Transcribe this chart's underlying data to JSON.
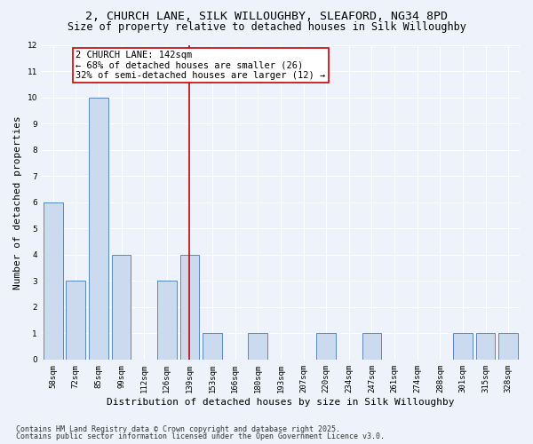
{
  "title_line1": "2, CHURCH LANE, SILK WILLOUGHBY, SLEAFORD, NG34 8PD",
  "title_line2": "Size of property relative to detached houses in Silk Willoughby",
  "xlabel": "Distribution of detached houses by size in Silk Willoughby",
  "ylabel": "Number of detached properties",
  "categories": [
    "58sqm",
    "72sqm",
    "85sqm",
    "99sqm",
    "112sqm",
    "126sqm",
    "139sqm",
    "153sqm",
    "166sqm",
    "180sqm",
    "193sqm",
    "207sqm",
    "220sqm",
    "234sqm",
    "247sqm",
    "261sqm",
    "274sqm",
    "288sqm",
    "301sqm",
    "315sqm",
    "328sqm"
  ],
  "values": [
    6,
    3,
    10,
    4,
    0,
    3,
    4,
    1,
    0,
    1,
    0,
    0,
    1,
    0,
    1,
    0,
    0,
    0,
    1,
    1,
    1
  ],
  "bar_color": "#ccdaf0",
  "bar_edge_color": "#5a87c5",
  "highlight_index": 6,
  "red_line_index": 6,
  "annotation_text": "2 CHURCH LANE: 142sqm\n← 68% of detached houses are smaller (26)\n32% of semi-detached houses are larger (12) →",
  "annotation_box_color": "#ffffff",
  "annotation_box_edge": "#cc0000",
  "red_line_color": "#cc0000",
  "ylim": [
    0,
    12
  ],
  "yticks": [
    0,
    1,
    2,
    3,
    4,
    5,
    6,
    7,
    8,
    9,
    10,
    11,
    12
  ],
  "background_color": "#edf2fb",
  "plot_bg_color": "#edf2fb",
  "grid_color": "#ffffff",
  "footer_line1": "Contains HM Land Registry data © Crown copyright and database right 2025.",
  "footer_line2": "Contains public sector information licensed under the Open Government Licence v3.0.",
  "title_fontsize": 9.5,
  "subtitle_fontsize": 8.5,
  "axis_label_fontsize": 8,
  "tick_fontsize": 6.5,
  "annotation_fontsize": 7.5,
  "footer_fontsize": 6.0
}
